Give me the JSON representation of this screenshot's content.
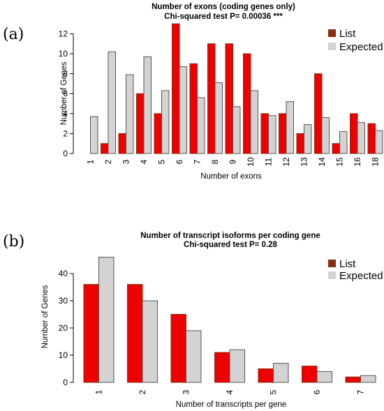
{
  "colors": {
    "list": "#ee0000",
    "list_edge": "#8b2d10",
    "expected": "#d3d3d3"
  },
  "chart_data": [
    {
      "type": "bar",
      "panel_label": "(a)",
      "title": "Number of exons (coding genes only)",
      "subtitle": "Chi-squared test P= 0.00036 ***",
      "xlabel": "Number of exons",
      "ylabel": "Number of Genes",
      "ylim": [
        0,
        13
      ],
      "yticks": [
        0,
        2,
        4,
        6,
        8,
        10,
        12
      ],
      "legend_position": "top-right",
      "categories": [
        "1",
        "2",
        "3",
        "4",
        "5",
        "6",
        "7",
        "8",
        "9",
        "10",
        "11",
        "12",
        "13",
        "14",
        "15",
        "16",
        "18"
      ],
      "series": [
        {
          "name": "List",
          "values": [
            0,
            1,
            2,
            6,
            4,
            13,
            9,
            11,
            11,
            10,
            4,
            4,
            2,
            8,
            1,
            4,
            3
          ]
        },
        {
          "name": "Expected",
          "values": [
            3.7,
            10.2,
            7.9,
            9.7,
            6.3,
            8.7,
            5.6,
            7.1,
            4.7,
            6.3,
            3.8,
            5.2,
            2.9,
            3.6,
            2.2,
            3.1,
            2.3
          ]
        }
      ]
    },
    {
      "type": "bar",
      "panel_label": "(b)",
      "title": "Number of transcript isoforms per coding gene",
      "subtitle": "Chi-squared test P= 0.28",
      "xlabel": "Number of transcripts per gene",
      "ylabel": "Number of Genes",
      "ylim": [
        0,
        45
      ],
      "yticks": [
        0,
        10,
        20,
        30,
        40
      ],
      "legend_position": "top-right",
      "categories": [
        "1",
        "2",
        "3",
        "4",
        "5",
        "6",
        "7"
      ],
      "series": [
        {
          "name": "List",
          "values": [
            36,
            36,
            25,
            11,
            5,
            6,
            2
          ]
        },
        {
          "name": "Expected",
          "values": [
            46,
            30,
            19,
            12,
            7,
            4,
            2.5
          ]
        }
      ]
    }
  ]
}
